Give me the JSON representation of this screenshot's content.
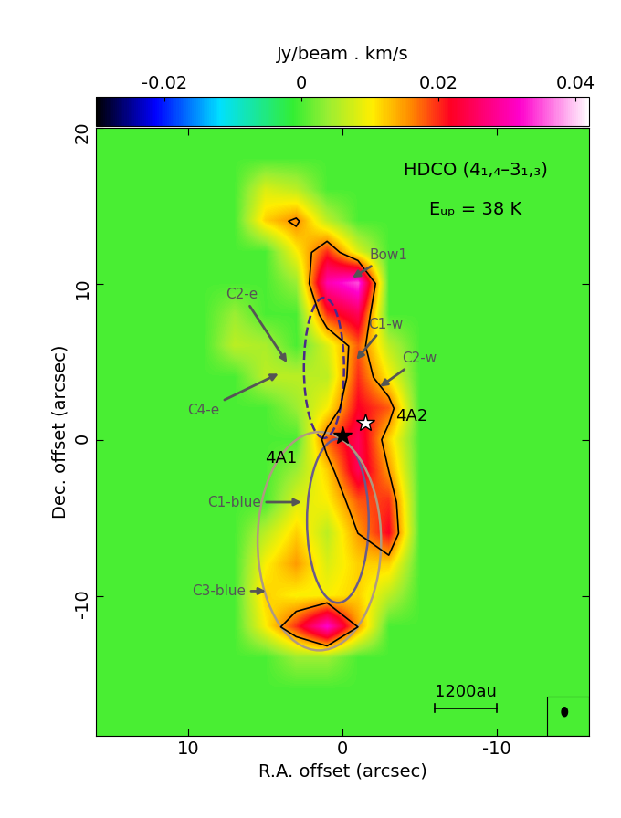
{
  "chart_data": {
    "type": "heatmap",
    "xlabel": "R.A. offset (arcsec)",
    "ylabel": "Dec. offset (arcsec)",
    "xlim": [
      16,
      -16
    ],
    "ylim": [
      -19,
      20
    ],
    "xticks": [
      10,
      0,
      -10
    ],
    "yticks": [
      -10,
      0,
      10,
      20
    ],
    "colorbar": {
      "label": "Jy/beam . km/s",
      "range": [
        -0.03,
        0.042
      ],
      "ticks": [
        -0.02,
        0,
        0.02,
        0.04
      ]
    },
    "contour_levels": [
      0.015
    ],
    "x": [
      15,
      13,
      11,
      9,
      7,
      5,
      3,
      1,
      -1,
      -3,
      -5,
      -7,
      -9,
      -11,
      -13,
      -15
    ],
    "y": [
      20,
      18,
      16,
      14,
      12,
      10,
      8,
      6,
      4,
      2,
      0,
      -2,
      -4,
      -6,
      -8,
      -10,
      -12,
      -14,
      -16,
      -18
    ],
    "cells": [
      [
        0,
        0,
        0,
        0,
        0,
        0,
        0,
        0,
        0,
        0,
        0,
        0,
        0,
        0,
        0,
        0
      ],
      [
        0,
        0,
        0,
        0,
        0,
        0,
        0,
        0,
        0,
        0,
        0,
        0,
        0,
        0,
        0,
        0
      ],
      [
        0,
        0,
        0,
        0,
        0,
        0.008,
        0.006,
        0,
        0,
        0,
        0,
        0,
        0,
        0,
        0,
        0
      ],
      [
        0,
        0,
        0,
        0,
        0,
        0.012,
        0.016,
        0.006,
        0,
        0,
        0,
        0,
        0,
        0,
        0,
        0
      ],
      [
        0,
        0,
        0,
        0,
        0,
        0,
        0.01,
        0.02,
        0.008,
        0,
        0,
        0,
        0,
        0,
        0,
        0
      ],
      [
        0,
        0,
        0,
        0,
        0,
        0,
        0.004,
        0.03,
        0.035,
        0,
        0,
        0,
        0,
        0,
        0,
        0
      ],
      [
        0,
        0,
        0,
        0,
        0.004,
        0,
        0,
        0.02,
        0.025,
        0,
        0,
        0,
        0,
        0,
        0,
        0
      ],
      [
        0,
        0,
        0,
        0,
        0.006,
        0.005,
        0,
        0.008,
        0.018,
        0.006,
        0,
        0,
        0,
        0,
        0,
        0
      ],
      [
        0,
        0,
        0,
        0,
        0,
        0.006,
        0.006,
        0.006,
        0.02,
        0.01,
        0,
        0,
        0,
        0,
        0,
        0
      ],
      [
        0,
        0,
        0,
        0,
        0,
        0,
        0.004,
        0.01,
        0.022,
        0.018,
        0,
        0,
        0,
        0,
        0,
        0
      ],
      [
        0,
        0,
        0,
        0,
        0,
        0,
        0,
        0.018,
        0.025,
        0.012,
        0,
        0,
        0,
        0,
        0,
        0
      ],
      [
        0,
        0,
        0,
        0,
        0,
        0,
        0.004,
        0.012,
        0.025,
        0.015,
        0,
        0,
        0,
        0,
        0,
        0
      ],
      [
        0,
        0,
        0,
        0,
        0,
        0,
        0.008,
        0.01,
        0.018,
        0.02,
        0,
        0,
        0,
        0,
        0,
        0
      ],
      [
        0,
        0,
        0,
        0,
        0,
        0.006,
        0.012,
        0.006,
        0.015,
        0.022,
        0,
        0,
        0,
        0,
        0,
        0
      ],
      [
        0,
        0,
        0,
        0,
        0,
        0.01,
        0.015,
        0.008,
        0.012,
        0.012,
        0,
        0,
        0,
        0,
        0,
        0
      ],
      [
        0,
        0,
        0,
        0,
        0,
        0.012,
        0.01,
        0.01,
        0.012,
        0.006,
        0,
        0,
        0,
        0,
        0,
        0
      ],
      [
        0,
        0,
        0,
        0,
        0,
        0.01,
        0.02,
        0.032,
        0.015,
        0,
        0,
        0,
        0,
        0,
        0,
        0
      ],
      [
        0,
        0,
        0,
        0,
        0,
        0,
        0.004,
        0.004,
        0,
        0,
        0,
        0,
        0,
        0,
        0,
        0
      ],
      [
        0,
        0,
        0,
        0,
        0,
        0,
        0,
        0,
        0,
        0,
        0,
        0,
        0,
        0,
        0,
        0
      ],
      [
        0,
        0,
        0,
        0,
        0,
        0,
        0,
        0,
        0,
        0,
        0,
        0,
        0,
        0,
        0,
        0
      ]
    ],
    "title_lines": [
      "HDCO (4₁,₄–3₁,₃)",
      "Eᵤₚ = 38 K"
    ],
    "sources": [
      {
        "name": "4A1",
        "x": 0,
        "y": 0.3,
        "label_x": 4,
        "label_y": -1.2,
        "color": "black"
      },
      {
        "name": "4A2",
        "x": -1.5,
        "y": 1.1,
        "label_x": -4.5,
        "label_y": 1.5,
        "color": "white"
      }
    ],
    "ellipses": [
      {
        "x": 0.3,
        "y": -5.2,
        "width": 4,
        "height": 10.5,
        "color": "#6a5a8a",
        "line_style": "solid"
      },
      {
        "x": 1.5,
        "y": -6.5,
        "width": 8,
        "height": 14,
        "color": "#b09a80",
        "line_style": "solid"
      },
      {
        "x": 1.2,
        "y": 4.6,
        "width": 2.6,
        "height": 9,
        "color": "#4a2a8a",
        "line_style": "dashed"
      }
    ],
    "annotations": [
      {
        "text": "Bow1",
        "x": -0.5,
        "y": 10.3,
        "text_x": -3,
        "text_y": 11.8
      },
      {
        "text": "C2-e",
        "x": 3.5,
        "y": 4.8,
        "text_x": 6.5,
        "text_y": 9.3
      },
      {
        "text": "C1-w",
        "x": -0.8,
        "y": 5,
        "text_x": -2.8,
        "text_y": 7.4
      },
      {
        "text": "C2-w",
        "x": -2.3,
        "y": 3.3,
        "text_x": -5,
        "text_y": 5.2
      },
      {
        "text": "C4-e",
        "x": 4,
        "y": 4.3,
        "text_x": 9,
        "text_y": 1.9
      },
      {
        "text": "C1-blue",
        "x": 2.5,
        "y": -4,
        "text_x": 7,
        "text_y": -4
      },
      {
        "text": "C3-blue",
        "x": 4.8,
        "y": -9.7,
        "text_x": 8,
        "text_y": -9.7
      }
    ],
    "scale_bar": {
      "label": "1200au",
      "x0": -6,
      "x1": -10,
      "y": -17.2
    }
  }
}
